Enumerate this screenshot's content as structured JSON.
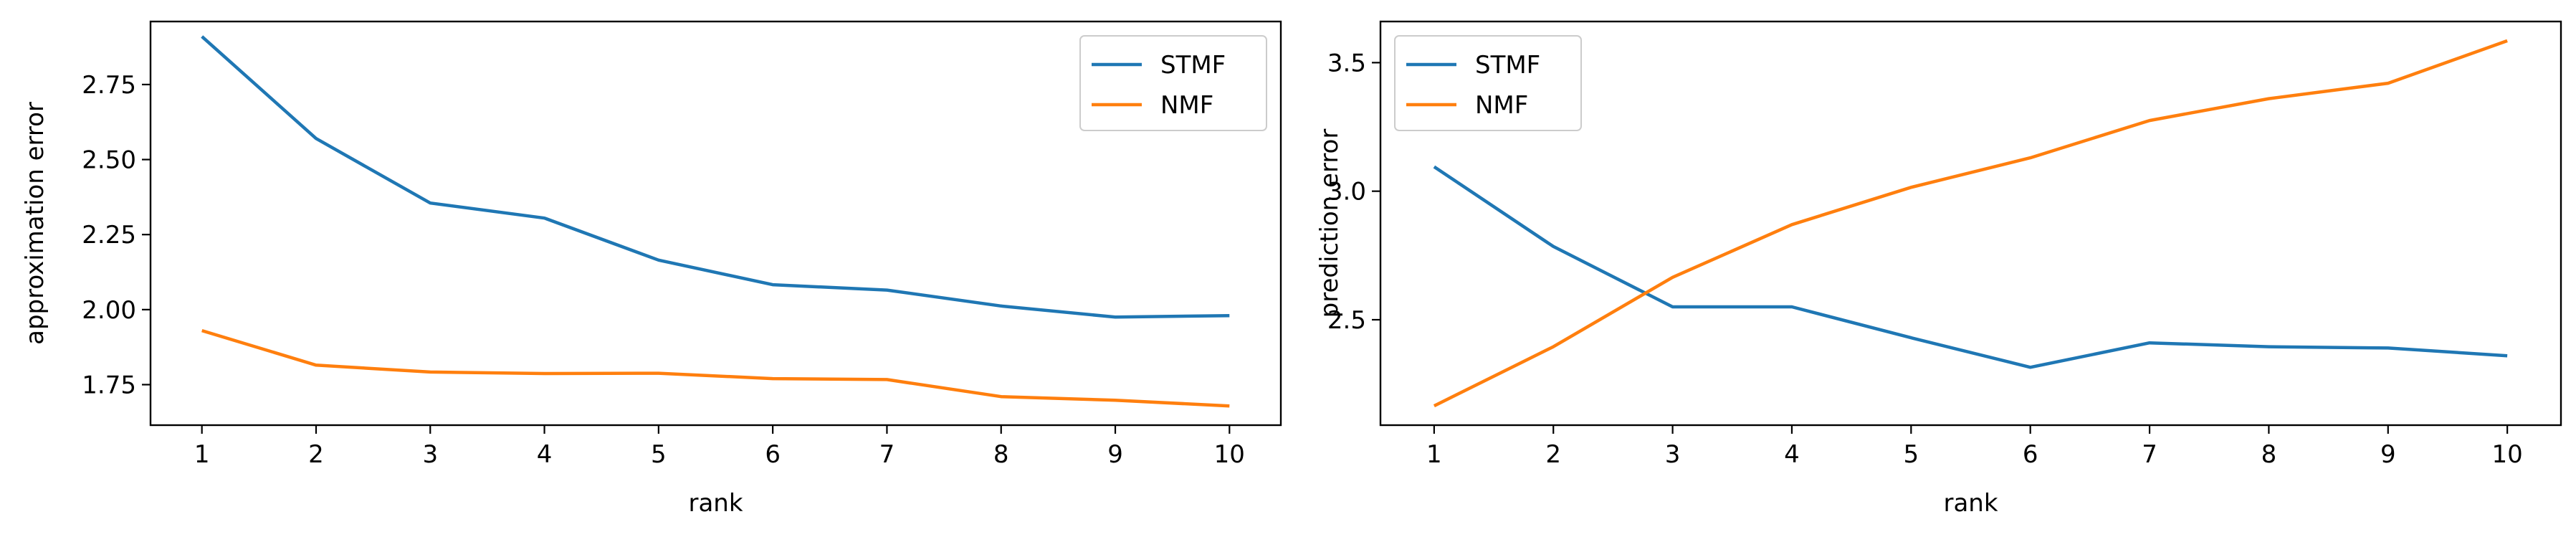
{
  "chart_data": [
    {
      "type": "line",
      "xlabel": "rank",
      "ylabel": "approximation error",
      "x": [
        1,
        2,
        3,
        4,
        5,
        6,
        7,
        8,
        9,
        10
      ],
      "xticks": [
        "1",
        "2",
        "3",
        "4",
        "5",
        "6",
        "7",
        "8",
        "9",
        "10"
      ],
      "xlim": [
        0.55,
        10.45
      ],
      "ylim": [
        1.615,
        2.96
      ],
      "yticks": [
        "1.75",
        "2.00",
        "2.25",
        "2.50",
        "2.75"
      ],
      "grid": false,
      "legend": "top-right",
      "series": [
        {
          "name": "STMF",
          "color": "#1f77b4",
          "values": [
            2.91,
            2.57,
            2.355,
            2.305,
            2.165,
            2.083,
            2.065,
            2.012,
            1.975,
            1.98
          ]
        },
        {
          "name": "NMF",
          "color": "#ff7f0e",
          "values": [
            1.93,
            1.815,
            1.792,
            1.787,
            1.788,
            1.77,
            1.767,
            1.71,
            1.698,
            1.679
          ]
        }
      ]
    },
    {
      "type": "line",
      "xlabel": "rank",
      "ylabel": "prediction error",
      "x": [
        1,
        2,
        3,
        4,
        5,
        6,
        7,
        8,
        9,
        10
      ],
      "xticks": [
        "1",
        "2",
        "3",
        "4",
        "5",
        "6",
        "7",
        "8",
        "9",
        "10"
      ],
      "xlim": [
        0.55,
        10.45
      ],
      "ylim": [
        2.09,
        3.66
      ],
      "yticks": [
        "2.5",
        "3.0",
        "3.5"
      ],
      "grid": false,
      "legend": "top-left",
      "series": [
        {
          "name": "STMF",
          "color": "#1f77b4",
          "values": [
            3.095,
            2.785,
            2.55,
            2.55,
            2.43,
            2.315,
            2.41,
            2.395,
            2.39,
            2.36
          ]
        },
        {
          "name": "NMF",
          "color": "#ff7f0e",
          "values": [
            2.165,
            2.395,
            2.665,
            2.87,
            3.015,
            3.13,
            3.275,
            3.36,
            3.42,
            3.585
          ]
        }
      ]
    }
  ]
}
